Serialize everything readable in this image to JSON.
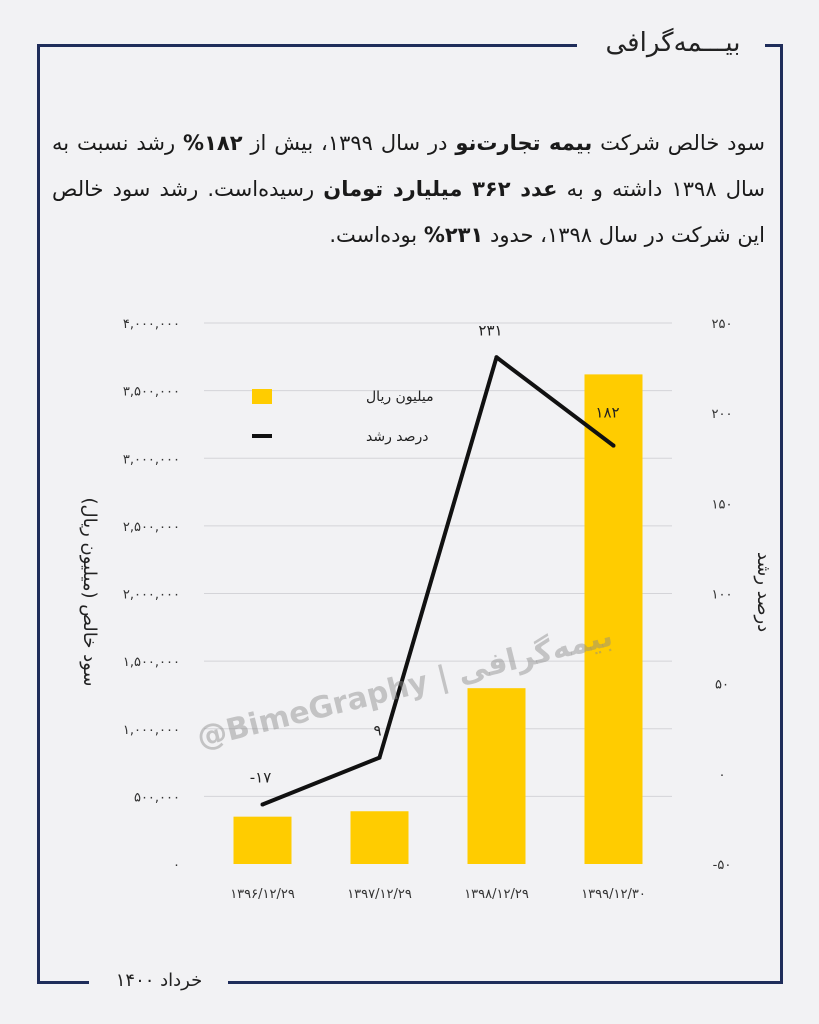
{
  "brand": "بیـــمه‌گرافی",
  "footer_date": "خرداد ۱۴۰۰",
  "intro": {
    "l1": "سود خالص شرکت ",
    "b1": "بیمه تجارت‌نو",
    "l2": " در سال ۱۳۹۹، بیش از ",
    "b2": "۱۸۲%",
    "l3": " رشد نسبت به سال ۱۳۹۸ داشته و به ",
    "b3": "عدد ۳۶۲ میلیارد تومان",
    "l4": " رسیده‌است. رشد سود خالص این شرکت در سال ۱۳۹۸، حدود ",
    "b4": "۲۳۱%",
    "l5": " بوده‌است."
  },
  "watermark": "@BimeGraphy | بیمه‌گرافی",
  "colors": {
    "bar": "#ffcc00",
    "line": "#111111",
    "frame": "#1f2d5a"
  },
  "chart_data": {
    "type": "bar",
    "categories": [
      "۱۳۹۶/۱۲/۲۹",
      "۱۳۹۷/۱۲/۲۹",
      "۱۳۹۸/۱۲/۲۹",
      "۱۳۹۹/۱۲/۳۰"
    ],
    "series": [
      {
        "name": "میلیون ریال",
        "type": "bar",
        "axis": "left",
        "values": [
          350000,
          390000,
          1300000,
          3620000
        ]
      },
      {
        "name": "درصد رشد",
        "type": "line",
        "axis": "right",
        "values": [
          -17,
          9,
          231,
          182
        ],
        "labels": [
          "-۱۷",
          "۹",
          "۲۳۱",
          "۱۸۲"
        ]
      }
    ],
    "ylabel": "سود خالص (میلیون ریال)",
    "y2label": "درصد رشد",
    "ylim": [
      0,
      4000000
    ],
    "y2lim": [
      -50,
      250
    ],
    "yticks": [
      "۴,۰۰۰,۰۰۰",
      "۳,۵۰۰,۰۰۰",
      "۳,۰۰۰,۰۰۰",
      "۲,۵۰۰,۰۰۰",
      "۲,۰۰۰,۰۰۰",
      "۱,۵۰۰,۰۰۰",
      "۱,۰۰۰,۰۰۰",
      "۵۰۰,۰۰۰",
      "۰"
    ],
    "y2ticks": [
      "۲۵۰",
      "۲۰۰",
      "۱۵۰",
      "۱۰۰",
      "۵۰",
      "۰",
      "-۵۰"
    ],
    "grid": true,
    "legend": "top-left"
  }
}
